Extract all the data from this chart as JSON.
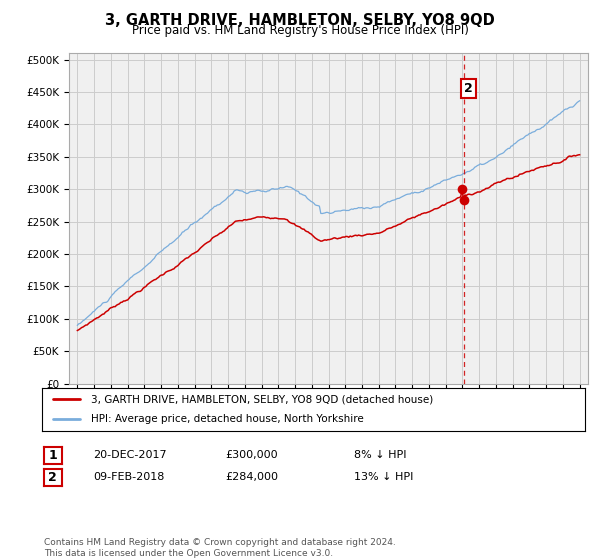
{
  "title": "3, GARTH DRIVE, HAMBLETON, SELBY, YO8 9QD",
  "subtitle": "Price paid vs. HM Land Registry's House Price Index (HPI)",
  "legend_red": "3, GARTH DRIVE, HAMBLETON, SELBY, YO8 9QD (detached house)",
  "legend_blue": "HPI: Average price, detached house, North Yorkshire",
  "transaction1_date": "20-DEC-2017",
  "transaction1_price": "£300,000",
  "transaction1_hpi": "8% ↓ HPI",
  "transaction2_date": "09-FEB-2018",
  "transaction2_price": "£284,000",
  "transaction2_hpi": "13% ↓ HPI",
  "footer": "Contains HM Land Registry data © Crown copyright and database right 2024.\nThis data is licensed under the Open Government Licence v3.0.",
  "red_color": "#cc0000",
  "blue_color": "#7aaddc",
  "dashed_color": "#cc0000",
  "grid_color": "#cccccc",
  "background_color": "#ffffff",
  "plot_bg_color": "#f0f0f0",
  "year_start": 1995,
  "year_end": 2025,
  "ylim_min": 0,
  "ylim_max": 500000,
  "t1_year": 2017.958,
  "t2_year": 2018.083
}
